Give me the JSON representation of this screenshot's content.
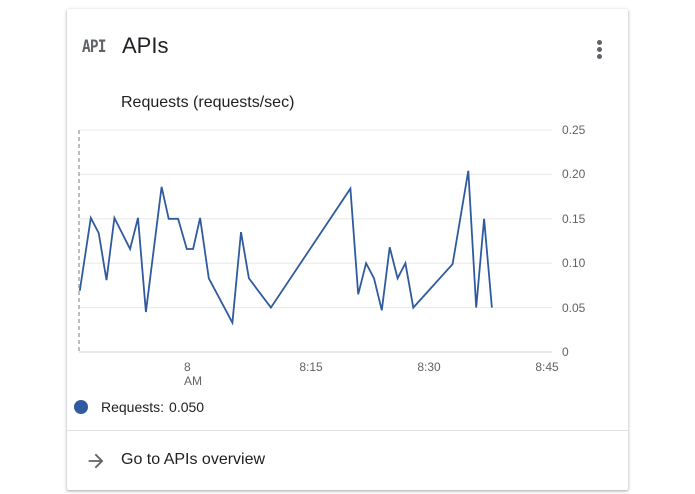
{
  "card": {
    "icon": "API",
    "title": "APIs",
    "menu_icon": "more-vert-icon"
  },
  "chart_data": {
    "type": "line",
    "title": "Requests (requests/sec)",
    "xlabel": "",
    "ylabel": "",
    "x_ticks": [
      "8 AM",
      "8:15",
      "8:30",
      "8:45"
    ],
    "y_ticks": [
      "0",
      "0.05",
      "0.10",
      "0.15",
      "0.20",
      "0.25"
    ],
    "ylim": [
      0,
      0.25
    ],
    "xlim_minutes_from_8am": [
      -14.5,
      45
    ],
    "grid": true,
    "y_axis_position": "right",
    "legend_position": "bottom",
    "series": [
      {
        "name": "Requests",
        "color": "#2f5b9e",
        "x_minutes_from_8am": [
          -14.4,
          -13.0,
          -12.0,
          -11.0,
          -10.0,
          -8.0,
          -7.0,
          -6.0,
          -4.0,
          -3.1,
          -1.9,
          -0.8,
          0.0,
          0.9,
          2.0,
          5.0,
          6.1,
          7.1,
          9.9,
          20.0,
          21.0,
          22.0,
          23.0,
          24.0,
          25.0,
          26.0,
          27.0,
          28.0,
          33.0,
          35.0,
          36.0,
          37.0,
          38.0
        ],
        "values": [
          0.069,
          0.151,
          0.134,
          0.081,
          0.151,
          0.116,
          0.151,
          0.045,
          0.186,
          0.15,
          0.15,
          0.116,
          0.116,
          0.151,
          0.083,
          0.033,
          0.135,
          0.083,
          0.05,
          0.184,
          0.065,
          0.1,
          0.083,
          0.047,
          0.118,
          0.083,
          0.1,
          0.05,
          0.099,
          0.204,
          0.05,
          0.15,
          0.05
        ]
      }
    ]
  },
  "legend": {
    "label": "Requests:",
    "value": "0.050",
    "color": "#2f5b9e"
  },
  "footer": {
    "link_label": "Go to APIs overview",
    "icon": "arrow-forward-icon"
  }
}
